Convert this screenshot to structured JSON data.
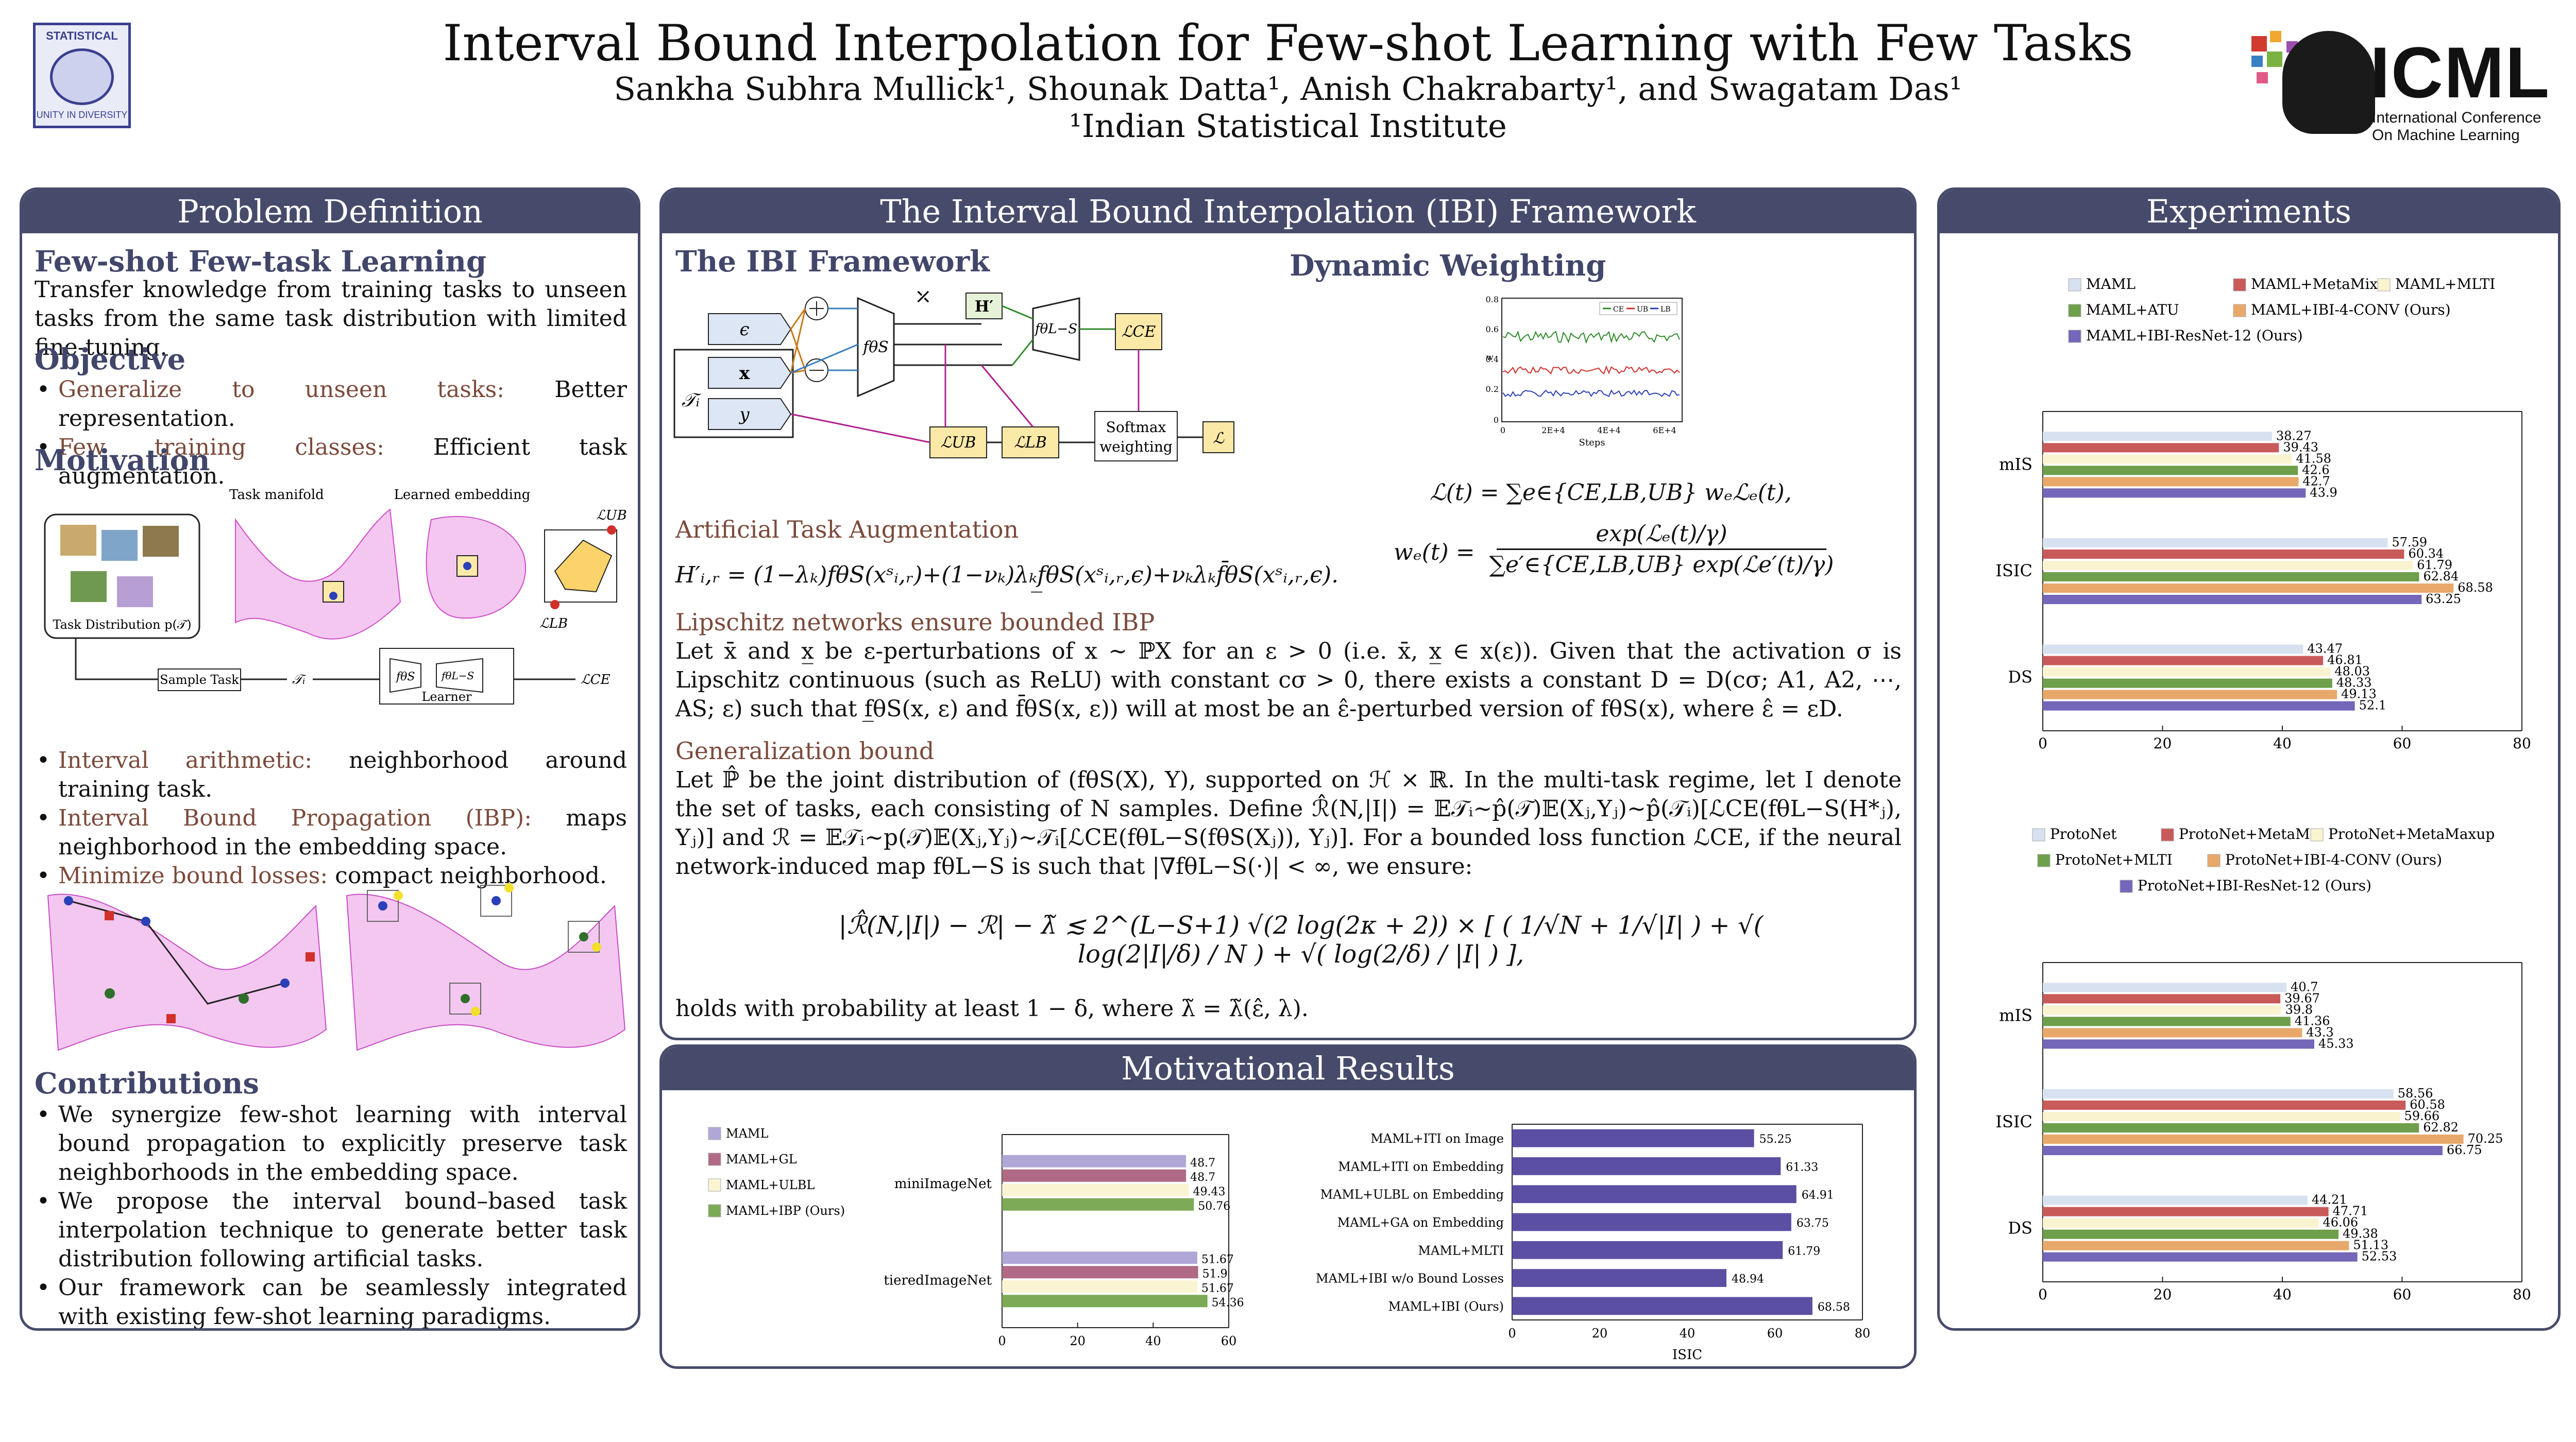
{
  "header": {
    "title": "Interval Bound Interpolation for Few-shot Learning with Few Tasks",
    "authors": "Sankha Subhra Mullick¹, Shounak Datta¹, Anish Chakrabarty¹, and Swagatam Das¹",
    "affiliation": "¹Indian Statistical Institute",
    "isi_top": "STATISTICAL",
    "isi_bottom": "UNITY IN DIVERSITY",
    "icml_word": "ICML",
    "icml_sub1": "International Conference",
    "icml_sub2": "On Machine Learning"
  },
  "left": {
    "title": "Problem Definition",
    "fsft_head": "Few-shot Few-task Learning",
    "fsft_text": "Transfer knowledge from training tasks to unseen tasks from the same task distribution with limited fine-tuning.",
    "objective_head": "Objective",
    "objective_items": [
      {
        "k": "Generalize to unseen tasks:",
        "v": " Better representation."
      },
      {
        "k": "Few training classes:",
        "v": " Efficient task augmentation."
      }
    ],
    "motivation_head": "Motivation",
    "fig_labels": {
      "manifold": "Task manifold",
      "embedding": "Learned embedding",
      "dist": "Task Distribution p(𝒯)",
      "sample": "Sample Task",
      "ti": "𝒯ᵢ",
      "learner": "Learner",
      "lub": "ℒUB",
      "llb": "ℒLB",
      "lce": "ℒCE",
      "fs": "fθS",
      "fls": "fθL−S"
    },
    "motivation_items": [
      {
        "k": "Interval arithmetic:",
        "v": " neighborhood around training task."
      },
      {
        "k": "Interval Bound Propagation (IBP):",
        "v": " maps neighborhood in the embedding space."
      },
      {
        "k": "Minimize bound losses:",
        "v": " compact neighborhood."
      }
    ],
    "contrib_head": "Contributions",
    "contrib_items": [
      "We synergize few-shot learning with interval bound propagation to explicitly preserve task neighborhoods in the embedding space.",
      "We propose the interval bound–based task interpolation technique to generate better task distribution following artificial tasks.",
      "Our framework can be seamlessly integrated with existing few-shot learning paradigms."
    ]
  },
  "middle": {
    "title": "The Interval Bound Interpolation (IBI) Framework",
    "ibi_head": "The IBI Framework",
    "dyn_head": "Dynamic Weighting",
    "diagram": {
      "eps": "ϵ",
      "x": "x",
      "y": "y",
      "ti": "𝒯ᵢ",
      "fs": "fθS",
      "fls": "fθL−S",
      "h": "H′",
      "lce": "ℒCE",
      "lub": "ℒUB",
      "llb": "ℒLB",
      "softmax1": "Softmax",
      "softmax2": "weighting",
      "l": "ℒ"
    },
    "mini_plot": {
      "y_ticks": [
        "0.8",
        "0.6",
        "0.4",
        "0.2",
        "0"
      ],
      "x_ticks": [
        "0",
        "2E+4",
        "4E+4",
        "6E+4"
      ],
      "x_label": "Steps",
      "y_label": "w",
      "legend": [
        "CE",
        "UB",
        "LB"
      ]
    },
    "eq_loss": "ℒ(t) = ∑e∈{CE,LB,UB} wₑℒₑ(t),",
    "eq_weight_lhs": "wₑ(t) =",
    "eq_weight_num": "exp(ℒₑ(t)/γ)",
    "eq_weight_den": "∑e′∈{CE,LB,UB} exp(ℒe′(t)/γ)",
    "aug_head": "Artificial Task Augmentation",
    "aug_eq": "H′ᵢ,ᵣ = (1−λₖ)fθS(xˢᵢ,ᵣ)+(1−νₖ)λₖf̲θS(xˢᵢ,ᵣ,ϵ)+νₖλₖf̄θS(xˢᵢ,ᵣ,ϵ).",
    "lip_head": "Lipschitz networks ensure bounded IBP",
    "lip_text": "Let x̄ and x̲ be ε-perturbations of x ∼ ℙX for an ε > 0 (i.e. x̄, x̲ ∈ x(ε)). Given that the activation σ is Lipschitz continuous (such as ReLU) with constant cσ > 0, there exists a constant D = D(cσ; A1, A2, ⋯, AS; ε) such that f̲θS(x, ε) and f̄θS(x, ε)) will at most be an ε̂-perturbed version of fθS(x), where ε̂ = εD.",
    "gen_head": "Generalization bound",
    "gen_text": "Let ℙ̂ be the joint distribution of (fθS(X), Y), supported on ℋ × ℝ. In the multi-task regime, let I denote the set of tasks, each consisting of N samples. Define ℛ̂(N,|I|) = 𝔼𝒯ᵢ∼p̂(𝒯)𝔼(Xⱼ,Yⱼ)∼p̂(𝒯ᵢ)[ℒCE(fθL−S(H*ⱼ), Yⱼ)] and ℛ = 𝔼𝒯ᵢ∼p(𝒯)𝔼(Xⱼ,Yⱼ)∼𝒯ᵢ[ℒCE(fθL−S(fθS(Xⱼ)), Yⱼ)]. For a bounded loss function ℒCE, if the neural network-induced map fθL−S is such that |∇fθL−S(·)| < ∞, we ensure:",
    "bound_eq": "|ℛ̂(N,|I|) − ℛ| − λ̃ ≲ 2^(L−S+1) √(2 log(2κ + 2)) × [ ( 1/√N + 1/√|I| ) + √( log(2|I|/δ) / N ) + √( log(2/δ) / |I| ) ],",
    "bound_tail": "holds with probability at least 1 − δ, where λ̃ = λ̃(ε̂, λ)."
  },
  "motiv": {
    "title": "Motivational Results",
    "colors": {
      "maml": "#b1a7d7",
      "gl": "#b06a86",
      "ulbl": "#fbf4d2",
      "ibp": "#7caa56",
      "hbar": "#5a4fa3"
    }
  },
  "right": {
    "title": "Experiments"
  },
  "chart_data": [
    {
      "type": "bar",
      "orientation": "horizontal",
      "categories": [
        "miniImageNet",
        "tieredImageNet"
      ],
      "series": [
        {
          "name": "MAML",
          "values": [
            48.7,
            51.67
          ]
        },
        {
          "name": "MAML+GL",
          "values": [
            48.7,
            51.9
          ]
        },
        {
          "name": "MAML+ULBL",
          "values": [
            49.43,
            51.67
          ]
        },
        {
          "name": "MAML+IBP (Ours)",
          "values": [
            50.76,
            54.36
          ]
        }
      ],
      "x_ticks": [
        "0",
        "20",
        "40",
        "60"
      ],
      "xlim": [
        0,
        60
      ]
    },
    {
      "type": "bar",
      "orientation": "horizontal",
      "categories": [
        "MAML+ITI on Image",
        "MAML+ITI on Embedding",
        "MAML+ULBL on Embedding",
        "MAML+GA on Embedding",
        "MAML+MLTI",
        "MAML+IBI w/o Bound Losses",
        "MAML+IBI (Ours)"
      ],
      "values": [
        55.25,
        61.33,
        64.91,
        63.75,
        61.79,
        48.94,
        68.58
      ],
      "xlabel": "ISIC",
      "x_ticks": [
        "0",
        "20",
        "40",
        "60",
        "80"
      ],
      "xlim": [
        0,
        80
      ]
    },
    {
      "type": "bar",
      "orientation": "horizontal",
      "categories": [
        "mIS",
        "ISIC",
        "DS"
      ],
      "series": [
        {
          "name": "MAML",
          "color": "#d7e1f0",
          "values": [
            38.27,
            57.59,
            43.47
          ]
        },
        {
          "name": "MAML+MetaMix",
          "color": "#c95a5a",
          "values": [
            39.43,
            60.34,
            46.81
          ]
        },
        {
          "name": "MAML+MLTI",
          "color": "#faf3d0",
          "values": [
            41.58,
            61.79,
            48.03
          ]
        },
        {
          "name": "MAML+ATU",
          "color": "#6e9f4b",
          "values": [
            42.6,
            62.84,
            48.33
          ]
        },
        {
          "name": "MAML+IBI-4-CONV (Ours)",
          "color": "#e8a86a",
          "values": [
            42.7,
            68.58,
            49.13
          ]
        },
        {
          "name": "MAML+IBI-ResNet-12 (Ours)",
          "color": "#7466b8",
          "values": [
            43.9,
            63.25,
            52.1
          ]
        }
      ],
      "x_ticks": [
        "0",
        "20",
        "40",
        "60",
        "80"
      ],
      "xlim": [
        0,
        80
      ]
    },
    {
      "type": "bar",
      "orientation": "horizontal",
      "categories": [
        "mIS",
        "ISIC",
        "DS"
      ],
      "series": [
        {
          "name": "ProtoNet",
          "color": "#d7e1f0",
          "values": [
            40.7,
            58.56,
            44.21
          ]
        },
        {
          "name": "ProtoNet+MetaMix",
          "color": "#c95a5a",
          "values": [
            39.67,
            60.58,
            47.71
          ]
        },
        {
          "name": "ProtoNet+MetaMaxup",
          "color": "#faf3d0",
          "values": [
            39.8,
            59.66,
            46.06
          ]
        },
        {
          "name": "ProtoNet+MLTI",
          "color": "#6e9f4b",
          "values": [
            41.36,
            62.82,
            49.38
          ]
        },
        {
          "name": "ProtoNet+IBI-4-CONV (Ours)",
          "color": "#e8a86a",
          "values": [
            43.3,
            70.25,
            51.13
          ]
        },
        {
          "name": "ProtoNet+IBI-ResNet-12 (Ours)",
          "color": "#7466b8",
          "values": [
            45.33,
            66.75,
            52.53
          ]
        }
      ],
      "x_ticks": [
        "0",
        "20",
        "40",
        "60",
        "80"
      ],
      "xlim": [
        0,
        80
      ]
    }
  ]
}
